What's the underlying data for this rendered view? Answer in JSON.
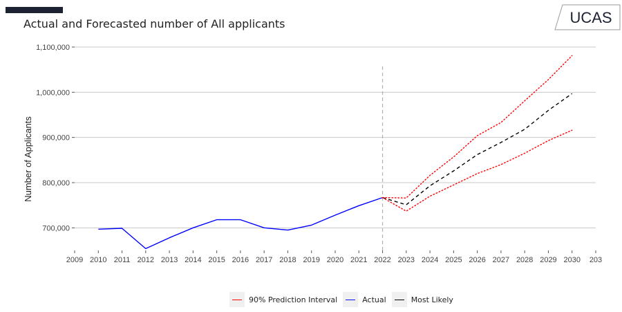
{
  "header": {
    "title": "Actual and Forecasted number of All applicants",
    "logo_text": "UCAS"
  },
  "chart_data": {
    "type": "line",
    "title": "Actual and Forecasted number of All applicants",
    "xlabel": "",
    "ylabel": "Number of Applicants",
    "xlim": [
      2009,
      2031
    ],
    "ylim": [
      650000,
      1100000
    ],
    "x_tick_labels": [
      "2009",
      "2010",
      "2011",
      "2012",
      "2013",
      "2014",
      "2015",
      "2016",
      "2017",
      "2018",
      "2019",
      "2020",
      "2021",
      "2022",
      "2023",
      "2024",
      "2025",
      "2026",
      "2027",
      "2028",
      "2029",
      "2030",
      "203"
    ],
    "y_tick_labels": [
      "700,000",
      "800,000",
      "900,000",
      "1,000,000",
      "1,100,000"
    ],
    "y_ticks": [
      700000,
      800000,
      900000,
      1000000,
      1100000
    ],
    "vertical_reference_x": 2022,
    "grid": "horizontal",
    "legend_position": "bottom",
    "series": [
      {
        "name": "Actual",
        "color": "#0000ff",
        "style": "solid",
        "x": [
          2010,
          2011,
          2012,
          2013,
          2014,
          2015,
          2016,
          2017,
          2018,
          2019,
          2020,
          2021,
          2022
        ],
        "values": [
          697000,
          699000,
          654000,
          678000,
          700000,
          718000,
          718000,
          700000,
          695000,
          706000,
          728000,
          749000,
          767000
        ]
      },
      {
        "name": "Most Likely",
        "color": "#000000",
        "style": "dashed",
        "x": [
          2022,
          2023,
          2024,
          2025,
          2026,
          2027,
          2028,
          2029,
          2030
        ],
        "values": [
          767000,
          751000,
          793000,
          826000,
          862000,
          889000,
          918000,
          960000,
          997000
        ]
      },
      {
        "name": "90% Prediction Interval",
        "color": "#ff0000",
        "style": "dotted",
        "x": [
          2022,
          2023,
          2024,
          2025,
          2026,
          2027,
          2028,
          2029,
          2030
        ],
        "values": [
          767000,
          766000,
          816000,
          857000,
          904000,
          933000,
          981000,
          1028000,
          1081000
        ]
      },
      {
        "name": "90% Prediction Interval",
        "color": "#ff0000",
        "style": "dotted",
        "x": [
          2022,
          2023,
          2024,
          2025,
          2026,
          2027,
          2028,
          2029,
          2030
        ],
        "values": [
          767000,
          737000,
          770000,
          795000,
          820000,
          840000,
          865000,
          893000,
          916000
        ]
      }
    ]
  },
  "legend": {
    "items": [
      {
        "label": "90% Prediction Interval",
        "color": "#ff0000"
      },
      {
        "label": "Actual",
        "color": "#0000ff"
      },
      {
        "label": "Most Likely",
        "color": "#000000"
      }
    ]
  }
}
